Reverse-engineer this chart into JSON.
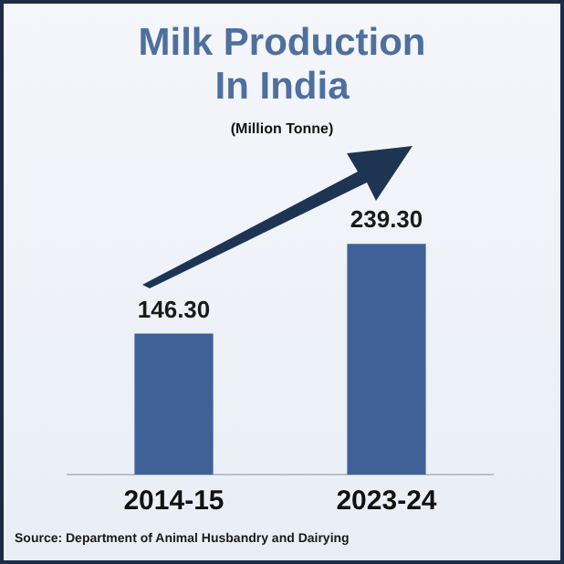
{
  "chart_data": {
    "type": "bar",
    "title": "Milk Production In India",
    "subtitle": "(Million Tonne)",
    "categories": [
      "2014-15",
      "2023-24"
    ],
    "values": [
      146.3,
      239.3
    ],
    "value_labels": [
      "146.30",
      "239.30"
    ],
    "color": "#3f6198",
    "annotations": [
      "Source: Department of Animal Husbandry and Dairying"
    ]
  }
}
